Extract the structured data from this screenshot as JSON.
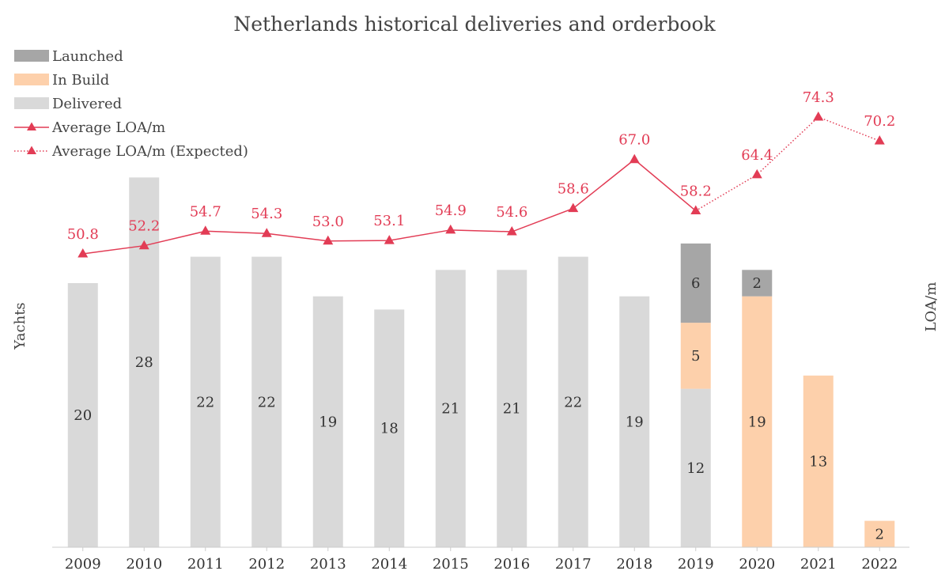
{
  "chart_data": {
    "type": "bar",
    "title": "Netherlands historical deliveries and orderbook",
    "ylabel": "Yachts",
    "y2label": "LOA/m",
    "categories": [
      "2009",
      "2010",
      "2011",
      "2012",
      "2013",
      "2014",
      "2015",
      "2016",
      "2017",
      "2018",
      "2019",
      "2020",
      "2021",
      "2022"
    ],
    "series": [
      {
        "name": "Delivered",
        "kind": "bar",
        "color": "#d9d9d9",
        "values": [
          20,
          28,
          22,
          22,
          19,
          18,
          21,
          21,
          22,
          19,
          12,
          0,
          0,
          0
        ]
      },
      {
        "name": "In Build",
        "kind": "bar",
        "color": "#fdd0ab",
        "values": [
          0,
          0,
          0,
          0,
          0,
          0,
          0,
          0,
          0,
          0,
          5,
          19,
          13,
          2
        ]
      },
      {
        "name": "Launched",
        "kind": "bar",
        "color": "#a6a6a6",
        "values": [
          0,
          0,
          0,
          0,
          0,
          0,
          0,
          0,
          0,
          0,
          6,
          2,
          0,
          0
        ]
      },
      {
        "name": "Average LOA/m",
        "kind": "line",
        "color": "#e23c55",
        "values": [
          50.8,
          52.2,
          54.7,
          54.3,
          53.0,
          53.1,
          54.9,
          54.6,
          58.6,
          67.0,
          58.2,
          null,
          null,
          null
        ]
      },
      {
        "name": "Average LOA/m (Expected)",
        "kind": "line-dotted",
        "color": "#e23c55",
        "values": [
          null,
          null,
          null,
          null,
          null,
          null,
          null,
          null,
          null,
          null,
          58.2,
          64.4,
          74.3,
          70.2
        ]
      }
    ],
    "line_labels": [
      "50.8",
      "52.2",
      "54.7",
      "54.3",
      "53.0",
      "53.1",
      "54.9",
      "54.6",
      "58.6",
      "67.0",
      "58.2",
      "64.4",
      "74.3",
      "70.2"
    ],
    "legend": {
      "position": "top-left",
      "entries": [
        "Launched",
        "In Build",
        "Delivered",
        "Average LOA/m",
        "Average LOA/m (Expected)"
      ]
    },
    "grid": false
  }
}
